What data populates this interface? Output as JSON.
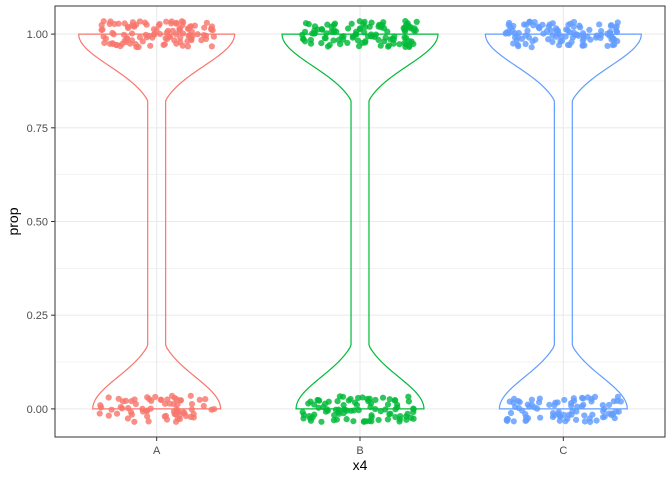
{
  "chart_data": {
    "type": "violin",
    "overlay": "jittered-points",
    "xlabel": "x4",
    "ylabel": "prop",
    "categories": [
      "A",
      "B",
      "C"
    ],
    "ylim": [
      -0.075,
      1.075
    ],
    "yticks": [
      0.0,
      0.25,
      0.5,
      0.75,
      1.0
    ],
    "ytick_labels": [
      "0.00",
      "0.25",
      "0.50",
      "0.75",
      "1.00"
    ],
    "grid": true,
    "legend": "none",
    "series": [
      {
        "category": "A",
        "color": "#F8766D",
        "points_at_0": 70,
        "points_at_1": 110
      },
      {
        "category": "B",
        "color": "#00BA38",
        "points_at_0": 90,
        "points_at_1": 110
      },
      {
        "category": "C",
        "color": "#619CFF",
        "points_at_0": 85,
        "points_at_1": 110
      }
    ]
  }
}
